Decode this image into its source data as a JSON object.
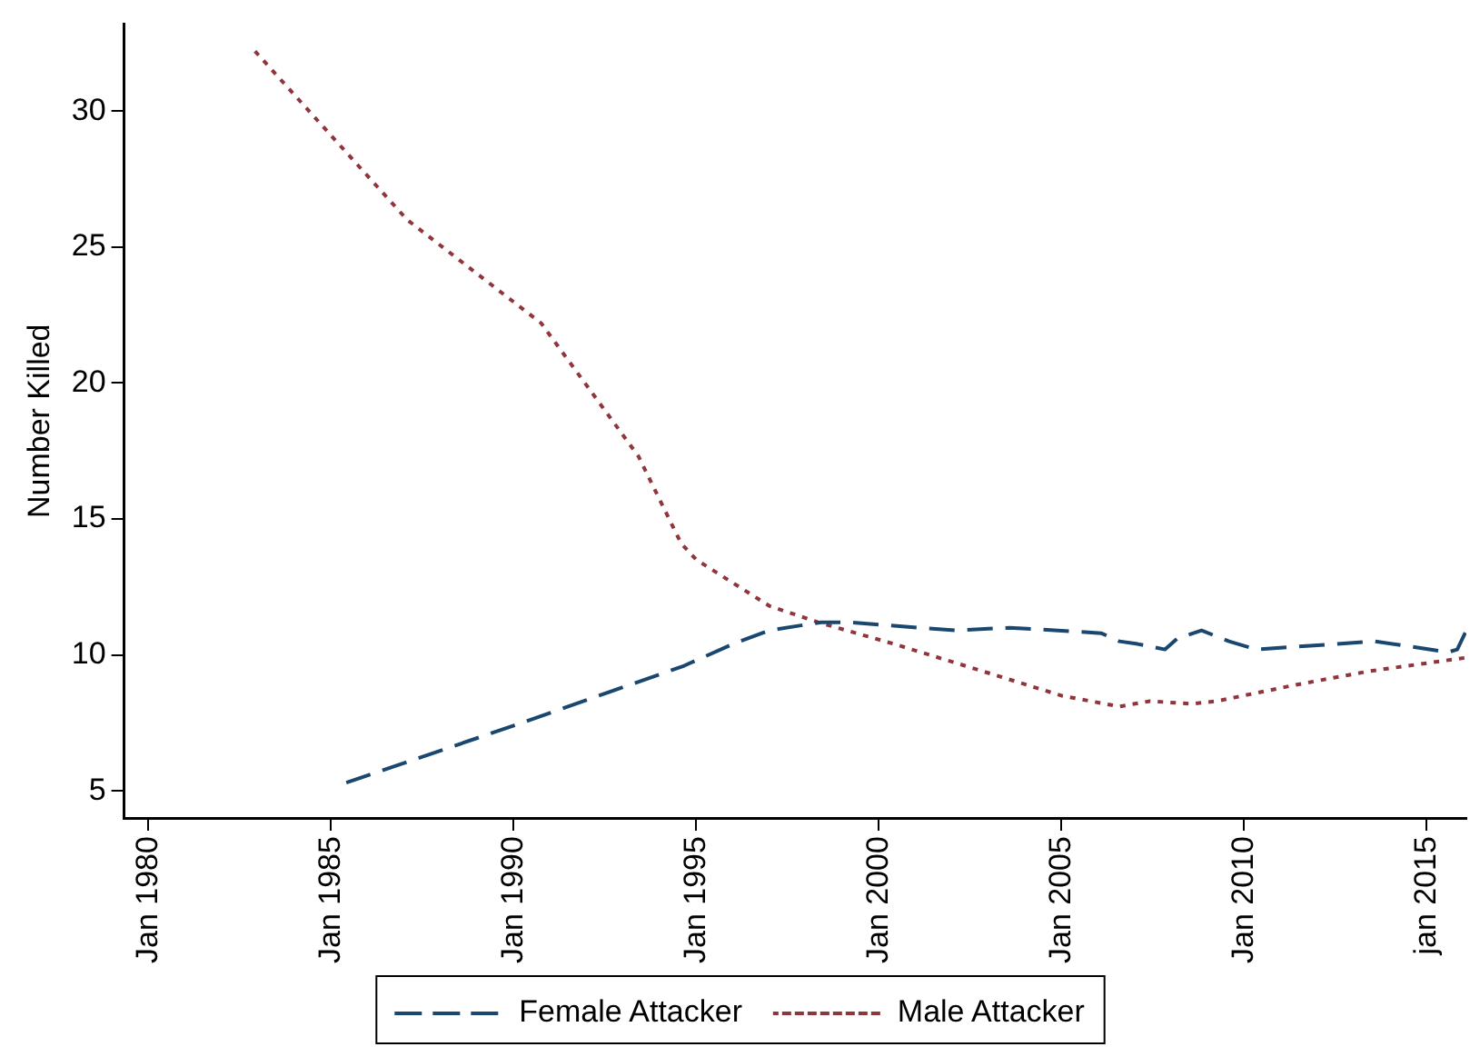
{
  "chart_data": {
    "type": "line",
    "ylabel": "Number Killed",
    "xlim": [
      "1979-05",
      "2016-02"
    ],
    "xticks": [
      {
        "value": "1980-01",
        "label": "Jan 1980"
      },
      {
        "value": "1985-01",
        "label": "Jan 1985"
      },
      {
        "value": "1990-01",
        "label": "Jan 1990"
      },
      {
        "value": "1995-01",
        "label": "Jan 1995"
      },
      {
        "value": "2000-01",
        "label": "Jan 2000"
      },
      {
        "value": "2005-01",
        "label": "Jan 2005"
      },
      {
        "value": "2010-01",
        "label": "Jan 2010"
      },
      {
        "value": "2015-01",
        "label": "jan 2015"
      }
    ],
    "ylim": [
      4,
      33.2
    ],
    "yticks": [
      5,
      10,
      15,
      20,
      25,
      30
    ],
    "grid": false,
    "legend": "bottom",
    "marker": "none",
    "series": [
      {
        "name": "Female Attacker",
        "color": "#1a476f",
        "line_style": "dashed",
        "x": [
          "1985-06",
          "1990-01",
          "1994-09",
          "1996-01",
          "1997-01",
          "1998-06",
          "1999-03",
          "2002-02",
          "2003-08",
          "2006-02",
          "2006-08",
          "2007-02",
          "2007-11",
          "2008-03",
          "2008-11",
          "2009-08",
          "2010-05",
          "2013-08",
          "2015-08",
          "2015-11",
          "2016-02"
        ],
        "values": [
          5.3,
          7.4,
          9.6,
          10.4,
          10.9,
          11.2,
          11.2,
          10.9,
          11.0,
          10.8,
          10.5,
          10.4,
          10.2,
          10.6,
          10.9,
          10.5,
          10.2,
          10.5,
          10.1,
          10.2,
          10.9
        ]
      },
      {
        "name": "Male Attacker",
        "color": "#90353b",
        "line_style": "dotted",
        "x": [
          "1982-12",
          "1987-02",
          "1990-10",
          "1993-06",
          "1994-08",
          "1995-01",
          "1997-01",
          "1998-05",
          "2000-06",
          "2003-02",
          "2005-01",
          "2006-08",
          "2007-06",
          "2008-08",
          "2009-04",
          "2011-06",
          "2013-06",
          "2016-02"
        ],
        "values": [
          32.2,
          26.0,
          22.2,
          17.3,
          14.1,
          13.5,
          11.8,
          11.2,
          10.4,
          9.3,
          8.5,
          8.1,
          8.3,
          8.2,
          8.3,
          8.9,
          9.4,
          9.9
        ]
      }
    ]
  }
}
